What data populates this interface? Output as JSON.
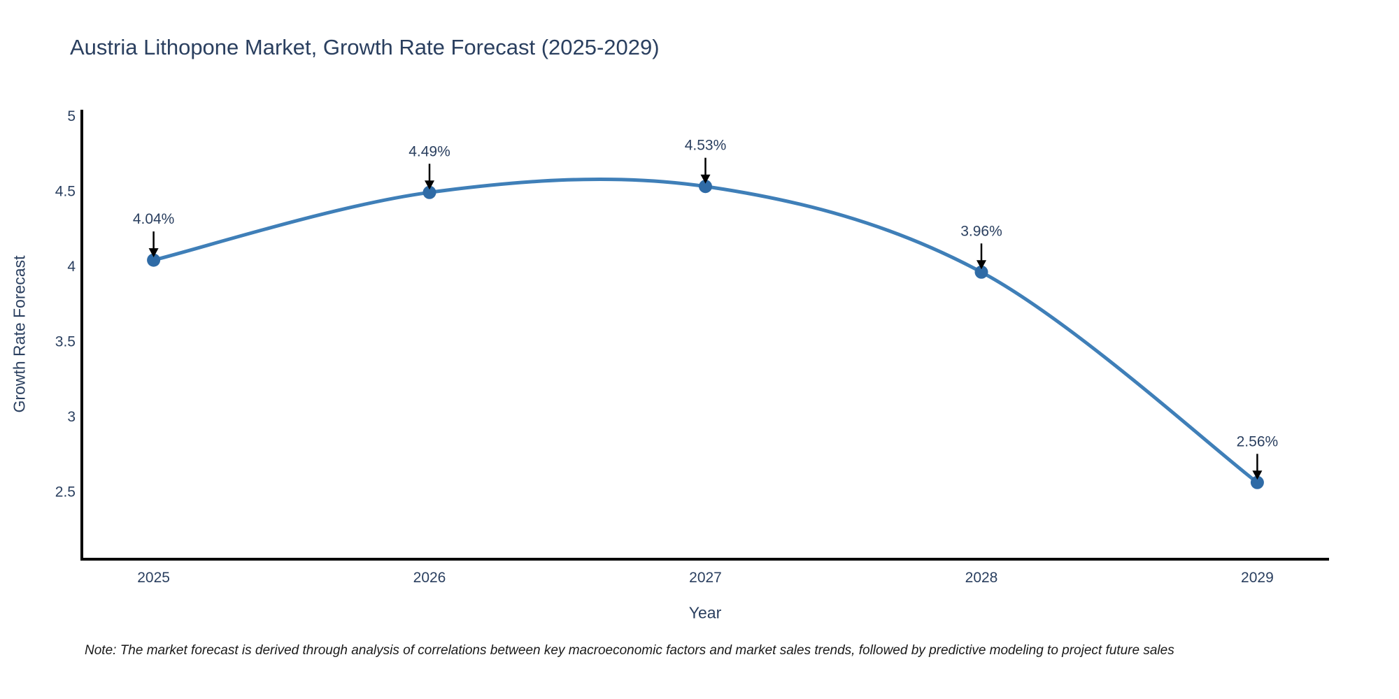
{
  "chart_data": {
    "type": "line",
    "title": "Austria Lithopone Market, Growth Rate Forecast (2025-2029)",
    "xlabel": "Year",
    "ylabel": "Growth Rate Forecast",
    "categories": [
      2025,
      2026,
      2027,
      2028,
      2029
    ],
    "series": [
      {
        "name": "Growth Rate Forecast",
        "values": [
          4.04,
          4.49,
          4.53,
          3.96,
          2.56
        ]
      }
    ],
    "point_labels": [
      "4.04%",
      "4.49%",
      "4.53%",
      "3.96%",
      "2.56%"
    ],
    "x_ticks": [
      "2025",
      "2026",
      "2027",
      "2028",
      "2029"
    ],
    "y_ticks": [
      "5",
      "4.5",
      "4",
      "3.5",
      "3",
      "2.5"
    ],
    "xlim": [
      2024.74,
      2029.26
    ],
    "ylim": [
      2.05,
      5.04
    ],
    "grid": false,
    "legend": "none",
    "line_shape": "spline",
    "annotation_style": "label-with-down-arrow-to-point",
    "colors": {
      "line": "#3f7fb8",
      "marker": "#2f6ba6",
      "axis": "#000000",
      "text": "#2a3f5f",
      "arrow": "#000000",
      "note_text": "#1a1a1a",
      "background": "#ffffff"
    }
  },
  "note": "Note: The market forecast is derived through analysis of correlations between key macroeconomic factors and market sales trends, followed by predictive modeling to project future sales"
}
